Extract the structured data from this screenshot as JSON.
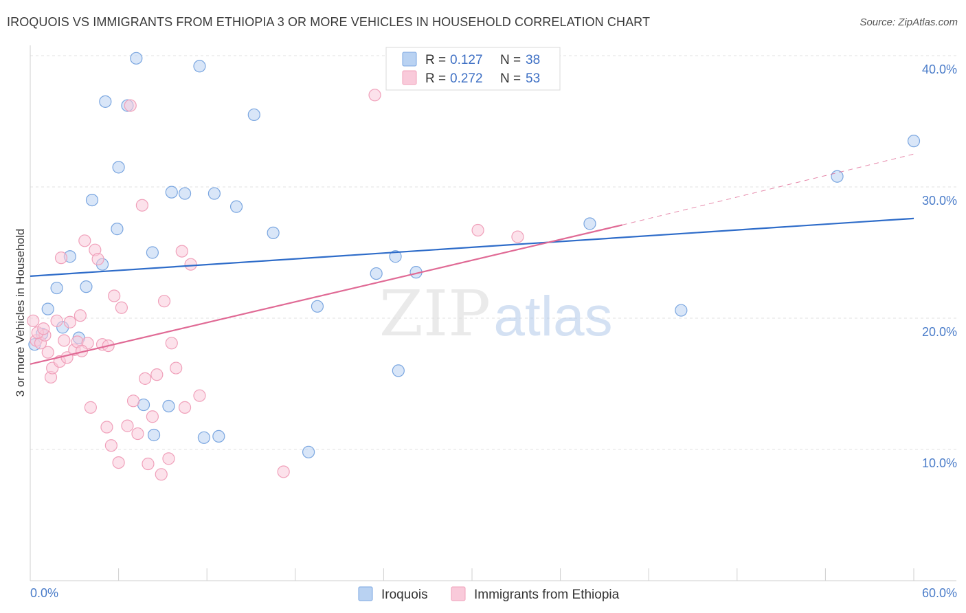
{
  "header": {
    "title": "IROQUOIS VS IMMIGRANTS FROM ETHIOPIA 3 OR MORE VEHICLES IN HOUSEHOLD CORRELATION CHART",
    "source": "Source: ZipAtlas.com"
  },
  "watermark": {
    "zip": "ZIP",
    "atlas": "atlas"
  },
  "chart_data": {
    "type": "scatter",
    "title": "IROQUOIS VS IMMIGRANTS FROM ETHIOPIA 3 OR MORE VEHICLES IN HOUSEHOLD CORRELATION CHART",
    "ylabel": "3 or more Vehicles in Household",
    "xlim": [
      0,
      60
    ],
    "ylim": [
      0,
      40
    ],
    "x_tick_labels": {
      "min": "0.0%",
      "max": "60.0%"
    },
    "y_ticks": [
      10,
      20,
      30,
      40
    ],
    "y_tick_labels": [
      "10.0%",
      "20.0%",
      "30.0%",
      "40.0%"
    ],
    "grid": true,
    "legend_position": "top-center",
    "legend": [
      {
        "r_label": "R = ",
        "r_value": "0.127",
        "n_label": "N = ",
        "n_value": "38"
      },
      {
        "r_label": "R = ",
        "r_value": "0.272",
        "n_label": "N = ",
        "n_value": "53"
      }
    ],
    "series": [
      {
        "name": "Iroquois",
        "color": "#7aa6e0",
        "fill": "#b9d2f2",
        "line_color": "#2e6cc9",
        "trend": {
          "x": [
            0,
            60
          ],
          "y": [
            23.2,
            27.6
          ]
        },
        "points": [
          [
            0.3,
            18.0
          ],
          [
            0.8,
            18.8
          ],
          [
            1.2,
            20.7
          ],
          [
            1.8,
            22.3
          ],
          [
            2.2,
            19.3
          ],
          [
            2.7,
            24.7
          ],
          [
            3.3,
            18.5
          ],
          [
            3.8,
            22.4
          ],
          [
            4.2,
            29.0
          ],
          [
            4.9,
            24.1
          ],
          [
            5.1,
            36.5
          ],
          [
            5.9,
            26.8
          ],
          [
            6.0,
            31.5
          ],
          [
            6.6,
            36.2
          ],
          [
            7.2,
            39.8
          ],
          [
            7.7,
            13.4
          ],
          [
            8.4,
            11.1
          ],
          [
            8.3,
            25.0
          ],
          [
            9.4,
            13.3
          ],
          [
            9.6,
            29.6
          ],
          [
            10.5,
            29.5
          ],
          [
            11.5,
            39.2
          ],
          [
            11.8,
            10.9
          ],
          [
            12.5,
            29.5
          ],
          [
            12.8,
            11.0
          ],
          [
            14.0,
            28.5
          ],
          [
            15.2,
            35.5
          ],
          [
            16.5,
            26.5
          ],
          [
            18.9,
            9.8
          ],
          [
            19.5,
            20.9
          ],
          [
            23.5,
            23.4
          ],
          [
            24.8,
            24.7
          ],
          [
            25.0,
            16.0
          ],
          [
            26.2,
            23.5
          ],
          [
            38.0,
            27.2
          ],
          [
            44.2,
            20.6
          ],
          [
            54.8,
            30.8
          ],
          [
            60.0,
            33.5
          ]
        ]
      },
      {
        "name": "Immigrants from Ethiopia",
        "color": "#f0a0ba",
        "fill": "#f9cada",
        "line_color": "#e06a95",
        "trend": {
          "x": [
            0,
            40.2
          ],
          "y": [
            16.5,
            27.1
          ]
        },
        "trend_ext": {
          "x": [
            40.2,
            60
          ],
          "y": [
            27.1,
            32.5
          ]
        },
        "points": [
          [
            0.2,
            19.8
          ],
          [
            0.4,
            18.3
          ],
          [
            0.7,
            18.1
          ],
          [
            1.0,
            18.7
          ],
          [
            1.2,
            17.4
          ],
          [
            1.4,
            15.5
          ],
          [
            1.5,
            16.2
          ],
          [
            1.8,
            19.8
          ],
          [
            2.0,
            16.7
          ],
          [
            2.3,
            18.3
          ],
          [
            2.5,
            17.0
          ],
          [
            2.7,
            19.7
          ],
          [
            3.0,
            17.6
          ],
          [
            3.2,
            18.2
          ],
          [
            3.4,
            20.2
          ],
          [
            3.7,
            25.9
          ],
          [
            3.9,
            18.1
          ],
          [
            4.1,
            13.2
          ],
          [
            4.4,
            25.2
          ],
          [
            4.6,
            24.5
          ],
          [
            4.9,
            18.0
          ],
          [
            5.2,
            11.7
          ],
          [
            5.5,
            10.3
          ],
          [
            5.7,
            21.7
          ],
          [
            6.0,
            9.0
          ],
          [
            6.2,
            20.8
          ],
          [
            6.6,
            11.8
          ],
          [
            6.8,
            36.2
          ],
          [
            7.0,
            13.7
          ],
          [
            7.3,
            11.2
          ],
          [
            7.6,
            28.6
          ],
          [
            7.8,
            15.4
          ],
          [
            8.0,
            8.9
          ],
          [
            8.3,
            12.5
          ],
          [
            8.6,
            15.7
          ],
          [
            8.9,
            8.1
          ],
          [
            9.1,
            21.3
          ],
          [
            9.4,
            9.3
          ],
          [
            9.6,
            18.1
          ],
          [
            9.9,
            16.2
          ],
          [
            10.3,
            25.1
          ],
          [
            10.5,
            13.2
          ],
          [
            10.9,
            24.1
          ],
          [
            11.5,
            14.1
          ],
          [
            17.2,
            8.3
          ],
          [
            23.4,
            37.0
          ],
          [
            30.4,
            26.7
          ],
          [
            33.1,
            26.2
          ],
          [
            0.5,
            18.9
          ],
          [
            2.1,
            24.6
          ],
          [
            5.3,
            17.9
          ],
          [
            0.9,
            19.2
          ],
          [
            3.5,
            17.5
          ]
        ]
      }
    ]
  }
}
